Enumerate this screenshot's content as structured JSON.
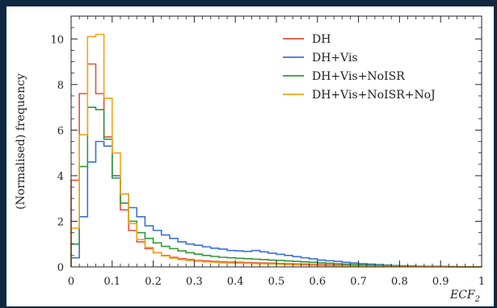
{
  "chart_data": {
    "type": "line",
    "title": "",
    "xlabel": "ECF",
    "xlabel_sub": "2",
    "ylabel": "(Normalised) frequency",
    "xlim": [
      0,
      1
    ],
    "ylim": [
      0,
      11
    ],
    "x_ticks": [
      0,
      0.1,
      0.2,
      0.3,
      0.4,
      0.5,
      0.6,
      0.7,
      0.8,
      0.9,
      1
    ],
    "x_tick_labels": [
      "0",
      "0.1",
      "0.2",
      "0.3",
      "0.4",
      "0.5",
      "0.6",
      "0.7",
      "0.8",
      "0.9",
      "1"
    ],
    "y_ticks": [
      0,
      2,
      4,
      6,
      8,
      10
    ],
    "y_tick_labels": [
      "0",
      "2",
      "4",
      "6",
      "8",
      "10"
    ],
    "grid": false,
    "legend_position": "top-right",
    "bin_width": 0.02,
    "bin_edges_start": 0,
    "series": [
      {
        "name": "DH",
        "color": "#e8503a",
        "values": [
          3.8,
          7.6,
          8.9,
          7.6,
          5.7,
          3.9,
          2.5,
          1.6,
          1.1,
          0.8,
          0.62,
          0.5,
          0.42,
          0.36,
          0.32,
          0.28,
          0.26,
          0.24,
          0.22,
          0.21,
          0.2,
          0.19,
          0.18,
          0.17,
          0.16,
          0.15,
          0.14,
          0.13,
          0.12,
          0.11,
          0.1,
          0.09,
          0.08,
          0.07,
          0.06,
          0.05,
          0.045,
          0.04,
          0.035,
          0.03,
          0.025,
          0.02,
          0.018,
          0.015,
          0.012,
          0.01,
          0.008,
          0.006,
          0.004,
          0.002
        ]
      },
      {
        "name": "DH+Vis",
        "color": "#3b6fdc",
        "values": [
          0.4,
          2.2,
          4.6,
          5.5,
          5.3,
          4.0,
          3.2,
          2.6,
          2.2,
          1.8,
          1.6,
          1.4,
          1.25,
          1.1,
          1.0,
          0.95,
          0.88,
          0.82,
          0.78,
          0.72,
          0.7,
          0.68,
          0.72,
          0.66,
          0.6,
          0.55,
          0.5,
          0.45,
          0.4,
          0.35,
          0.3,
          0.27,
          0.24,
          0.2,
          0.17,
          0.14,
          0.12,
          0.1,
          0.08,
          0.06,
          0.05,
          0.04,
          0.03,
          0.025,
          0.02,
          0.015,
          0.01,
          0.008,
          0.005,
          0.003
        ]
      },
      {
        "name": "DH+Vis+NoISR",
        "color": "#2e9a3a",
        "values": [
          1.0,
          4.4,
          7.0,
          6.9,
          5.6,
          3.9,
          2.8,
          2.0,
          1.5,
          1.25,
          1.05,
          0.9,
          0.8,
          0.7,
          0.62,
          0.56,
          0.5,
          0.46,
          0.42,
          0.4,
          0.38,
          0.36,
          0.34,
          0.32,
          0.3,
          0.28,
          0.26,
          0.24,
          0.22,
          0.2,
          0.18,
          0.16,
          0.14,
          0.12,
          0.1,
          0.09,
          0.08,
          0.07,
          0.06,
          0.05,
          0.04,
          0.03,
          0.025,
          0.02,
          0.015,
          0.012,
          0.01,
          0.007,
          0.005,
          0.003
        ]
      },
      {
        "name": "DH+Vis+NoISR+NoJ",
        "color": "#f2a51a",
        "values": [
          1.7,
          5.8,
          10.1,
          10.2,
          7.4,
          5.0,
          3.2,
          1.9,
          1.2,
          0.85,
          0.62,
          0.48,
          0.38,
          0.32,
          0.28,
          0.25,
          0.22,
          0.2,
          0.18,
          0.17,
          0.16,
          0.15,
          0.14,
          0.13,
          0.12,
          0.11,
          0.1,
          0.09,
          0.08,
          0.07,
          0.06,
          0.055,
          0.05,
          0.045,
          0.04,
          0.035,
          0.03,
          0.025,
          0.02,
          0.018,
          0.015,
          0.012,
          0.01,
          0.008,
          0.006,
          0.005,
          0.004,
          0.003,
          0.002,
          0.001
        ]
      }
    ]
  }
}
